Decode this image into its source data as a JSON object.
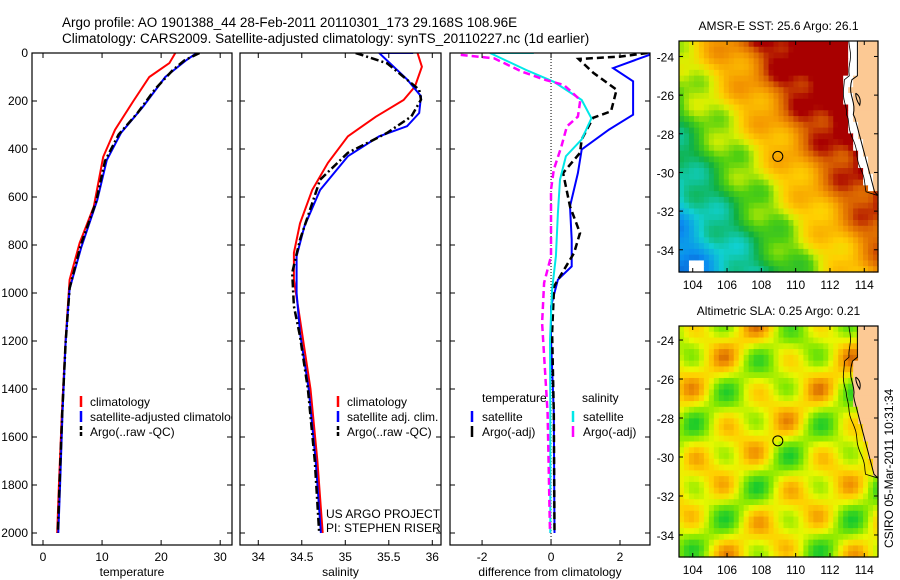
{
  "header": {
    "line1": "Argo profile: AO 1901388_44 28-Feb-2011 20110301_173 29.168S 108.96E",
    "line2": "Climatology: CARS2009. Satellite-adjusted climatology: synTS_20110227.nc (1d earlier)"
  },
  "credits": {
    "project": "US ARGO PROJECT",
    "pi": "PI: STEPHEN RISER"
  },
  "timestamp": "CSIRO 05-Mar-2011 10:31:34",
  "colors": {
    "climatology": "#ff0000",
    "satellite": "#0000ff",
    "argo": "#000000",
    "salinity_satellite": "#00e8e8",
    "salinity_argo": "#ff00ff",
    "land": "#fcc994"
  },
  "chart_data": [
    {
      "type": "line",
      "id": "temperature",
      "xlabel": "temperature",
      "xlim": [
        -1.86,
        32.0
      ],
      "xticks": [
        0,
        10,
        20,
        30
      ],
      "ylim": [
        0,
        2050
      ],
      "yreversed": true,
      "yticks": [
        0,
        200,
        400,
        600,
        800,
        1000,
        1200,
        1400,
        1600,
        1800,
        2000
      ],
      "legend": [
        "climatology",
        "satellite-adjusted climatology",
        "Argo(..raw -QC)"
      ],
      "series": [
        {
          "name": "climatology",
          "color": "#ff0000",
          "style": "solid",
          "depth": [
            0,
            42,
            100,
            200,
            320,
            433,
            640,
            792,
            945,
            1190,
            1500,
            1800,
            2000
          ],
          "values": [
            22.4,
            21.4,
            18.0,
            15.3,
            12.2,
            10.2,
            8.6,
            6.2,
            4.5,
            3.85,
            3.2,
            2.7,
            2.4
          ]
        },
        {
          "name": "satellite-adjusted climatology",
          "color": "#0000ff",
          "style": "solid",
          "depth": [
            0,
            29,
            100,
            225,
            333,
            446,
            612,
            808,
            983,
            1200,
            1500,
            1800,
            2000
          ],
          "values": [
            26.0,
            24.3,
            20.7,
            16.9,
            13.2,
            10.8,
            9.2,
            6.5,
            4.5,
            3.85,
            3.3,
            2.9,
            2.6
          ]
        },
        {
          "name": "Argo(..raw -QC)",
          "color": "#000000",
          "style": "dashdot",
          "depth": [
            0,
            30,
            71,
            150,
            250,
            340,
            450,
            620,
            800,
            980,
            1200,
            1500,
            1800,
            2000
          ],
          "values": [
            26.5,
            24.0,
            22.0,
            19.0,
            16.0,
            12.8,
            10.5,
            9.0,
            6.4,
            4.5,
            3.85,
            3.25,
            2.8,
            2.5
          ]
        }
      ]
    },
    {
      "type": "line",
      "id": "salinity",
      "xlabel": "salinity",
      "xlim": [
        33.79,
        36.1
      ],
      "xticks": [
        34,
        34.5,
        35,
        35.5,
        36
      ],
      "ylim": [
        0,
        2050
      ],
      "yreversed": true,
      "yticks": [
        0,
        200,
        400,
        600,
        800,
        1000,
        1200,
        1400,
        1600,
        1800,
        2000
      ],
      "legend": [
        "climatology",
        "satellite adj. clim.",
        "Argo(..raw -QC)"
      ],
      "series": [
        {
          "name": "climatology",
          "color": "#ff0000",
          "style": "solid",
          "depth": [
            0,
            57,
            140,
            196,
            266,
            347,
            458,
            571,
            710,
            833,
            944,
            1110,
            1400,
            1700,
            2000
          ],
          "values": [
            35.83,
            35.88,
            35.8,
            35.67,
            35.35,
            35.03,
            34.8,
            34.62,
            34.48,
            34.41,
            34.41,
            34.48,
            34.6,
            34.68,
            34.74
          ]
        },
        {
          "name": "satellite adj. clim.",
          "color": "#0000ff",
          "style": "solid",
          "depth": [
            0,
            0.1,
            110,
            180,
            250,
            305,
            347,
            430,
            571,
            722,
            847,
            1000,
            1166,
            1400,
            1700,
            2000
          ],
          "values": [
            35.78,
            35.39,
            35.71,
            35.87,
            35.85,
            35.71,
            35.39,
            35.03,
            34.71,
            34.53,
            34.44,
            34.44,
            34.48,
            34.58,
            34.66,
            34.72
          ]
        },
        {
          "name": "Argo(..raw -QC)",
          "color": "#000000",
          "style": "dashdot",
          "depth": [
            0,
            43,
            153,
            194,
            264,
            333,
            416,
            528,
            778,
            916,
            1055,
            1180,
            1400,
            1700,
            2000
          ],
          "values": [
            35.12,
            35.48,
            35.85,
            35.87,
            35.76,
            35.48,
            35.03,
            34.71,
            34.48,
            34.39,
            34.41,
            34.48,
            34.57,
            34.65,
            34.7
          ]
        }
      ]
    },
    {
      "type": "line",
      "id": "difference",
      "xlabel": "difference from climatology",
      "xlim": [
        -2.93,
        2.87
      ],
      "xticks": [
        -2,
        0,
        2
      ],
      "ylim": [
        0,
        2050
      ],
      "yreversed": true,
      "yticks": [
        0,
        200,
        400,
        600,
        800,
        1000,
        1200,
        1400,
        1600,
        1800,
        2000
      ],
      "zero_line": true,
      "legend_headers": [
        "temperature",
        "salinity"
      ],
      "legend": [
        "satellite",
        "Argo(-adj)",
        "satellite",
        "Argo(-adj)"
      ],
      "series": [
        {
          "name": "temperature satellite",
          "color": "#0000ff",
          "style": "solid",
          "depth": [
            0,
            8,
            63,
            118,
            257,
            319,
            402,
            500,
            639,
            778,
            889,
            944,
            1055,
            1190,
            1500,
            2000
          ],
          "values": [
            2.85,
            2.85,
            1.8,
            2.38,
            2.38,
            1.68,
            0.89,
            0.78,
            0.55,
            0.6,
            0.6,
            0.2,
            0.0,
            0.0,
            0.08,
            0.1
          ]
        },
        {
          "name": "temperature Argo(-adj)",
          "color": "#000000",
          "style": "dashed",
          "depth": [
            0,
            15,
            25,
            83,
            153,
            243,
            270,
            360,
            416,
            500,
            639,
            750,
            833,
            972,
            1166,
            1500,
            2000
          ],
          "values": [
            2.8,
            2.0,
            0.8,
            1.23,
            1.9,
            1.74,
            1.22,
            0.89,
            0.84,
            0.35,
            0.55,
            0.84,
            0.67,
            0.09,
            0.03,
            0.08,
            0.1
          ]
        },
        {
          "name": "salinity satellite",
          "color": "#00e8e8",
          "style": "solid",
          "depth": [
            0,
            0.1,
            71,
            120,
            196,
            272,
            360,
            430,
            528,
            667,
            847,
            986,
            1194,
            1500,
            2000
          ],
          "values": [
            -0.5,
            -1.77,
            -0.72,
            0.08,
            0.89,
            1.17,
            0.89,
            0.43,
            0.26,
            0.2,
            0.14,
            0.03,
            -0.03,
            -0.02,
            -0.02
          ]
        },
        {
          "name": "salinity Argo(-adj)",
          "color": "#ff00ff",
          "style": "dashed",
          "depth": [
            8,
            22,
            78,
            113,
            133,
            196,
            265,
            306,
            389,
            486,
            570,
            847,
            958,
            1125,
            1500,
            2000
          ],
          "values": [
            -2.62,
            -1.65,
            -0.84,
            -0.15,
            0.37,
            0.85,
            0.78,
            0.46,
            0.3,
            0.08,
            0.0,
            0.0,
            -0.2,
            -0.26,
            -0.1,
            -0.03
          ]
        }
      ]
    },
    {
      "type": "heatmap",
      "id": "sst-map",
      "title": "AMSR-E SST: 25.6 Argo: 26.1",
      "xlim": [
        103.2,
        114.8
      ],
      "ylim": [
        -35.15,
        -23.2
      ],
      "xticks": [
        104,
        106,
        108,
        110,
        112,
        114
      ],
      "yticks": [
        -24,
        -26,
        -28,
        -30,
        -32,
        -34
      ],
      "marker": {
        "lon": 108.96,
        "lat": -29.17
      }
    },
    {
      "type": "heatmap",
      "id": "sla-map",
      "title": "Altimetric SLA: 0.25 Argo: 0.21",
      "xlim": [
        103.2,
        114.8
      ],
      "ylim": [
        -35.13,
        -23.28
      ],
      "xticks": [
        104,
        106,
        108,
        110,
        112,
        114
      ],
      "yticks": [
        -24,
        -26,
        -28,
        -30,
        -32,
        -34
      ],
      "marker": {
        "lon": 108.96,
        "lat": -29.17
      }
    }
  ]
}
